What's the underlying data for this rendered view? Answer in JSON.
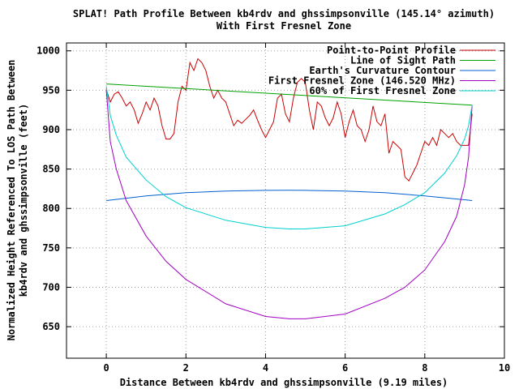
{
  "chart_data": {
    "type": "line",
    "title": "SPLAT! Path Profile Between kb4rdv and ghssimpsonville (145.14° azimuth)",
    "subtitle": "With First Fresnel Zone",
    "xlabel": "Distance Between kb4rdv and ghssimpsonville (9.19 miles)",
    "ylabel_line1": "Normalized Height Referenced To LOS Path Between",
    "ylabel_line2": "kb4rdv and ghssimpsonville (feet)",
    "xlim": [
      -1,
      10
    ],
    "ylim": [
      610,
      1010
    ],
    "xticks": [
      0,
      2,
      4,
      6,
      8,
      10
    ],
    "yticks": [
      650,
      700,
      750,
      800,
      850,
      900,
      950,
      1000
    ],
    "grid": true,
    "legend_position": "top-right",
    "series": [
      {
        "name": "Point-to-Point Profile",
        "color": "#cc0000",
        "x": [
          0,
          0.1,
          0.2,
          0.3,
          0.4,
          0.5,
          0.6,
          0.7,
          0.8,
          0.9,
          1.0,
          1.1,
          1.2,
          1.3,
          1.4,
          1.5,
          1.6,
          1.7,
          1.8,
          1.9,
          2.0,
          2.1,
          2.2,
          2.3,
          2.4,
          2.5,
          2.6,
          2.7,
          2.8,
          2.9,
          3.0,
          3.1,
          3.2,
          3.3,
          3.4,
          3.5,
          3.6,
          3.7,
          3.8,
          3.9,
          4.0,
          4.1,
          4.2,
          4.3,
          4.4,
          4.5,
          4.6,
          4.7,
          4.8,
          4.9,
          5.0,
          5.1,
          5.2,
          5.3,
          5.4,
          5.5,
          5.6,
          5.7,
          5.8,
          5.9,
          6.0,
          6.1,
          6.2,
          6.3,
          6.4,
          6.5,
          6.6,
          6.7,
          6.8,
          6.9,
          7.0,
          7.1,
          7.2,
          7.3,
          7.4,
          7.5,
          7.6,
          7.7,
          7.8,
          7.9,
          8.0,
          8.1,
          8.2,
          8.3,
          8.4,
          8.5,
          8.6,
          8.7,
          8.8,
          8.9,
          9.0,
          9.1,
          9.19
        ],
        "values": [
          951,
          935,
          945,
          948,
          940,
          930,
          935,
          925,
          908,
          920,
          935,
          925,
          940,
          930,
          905,
          888,
          888,
          895,
          935,
          955,
          950,
          985,
          975,
          990,
          985,
          975,
          955,
          940,
          950,
          940,
          935,
          920,
          905,
          912,
          908,
          913,
          918,
          925,
          912,
          900,
          890,
          900,
          910,
          940,
          945,
          920,
          910,
          940,
          960,
          965,
          960,
          925,
          900,
          935,
          930,
          915,
          905,
          915,
          935,
          920,
          890,
          910,
          925,
          905,
          900,
          885,
          900,
          930,
          910,
          905,
          920,
          870,
          885,
          880,
          875,
          840,
          835,
          845,
          855,
          870,
          885,
          880,
          890,
          880,
          900,
          895,
          890,
          895,
          885,
          880,
          880,
          880,
          920
        ]
      },
      {
        "name": "Line of Sight Path",
        "color": "#00a000",
        "x": [
          0,
          9.19
        ],
        "values": [
          958,
          931
        ]
      },
      {
        "name": "Earth's Curvature Contour",
        "color": "#0060d0",
        "x": [
          0,
          1,
          2,
          3,
          4,
          4.6,
          5,
          6,
          7,
          8,
          9,
          9.19
        ],
        "values": [
          810,
          816,
          820,
          822,
          823,
          823.2,
          823,
          822,
          820,
          816,
          811,
          810
        ]
      },
      {
        "name": "First Fresnel Zone (146.520 MHz)",
        "color": "#a000c0",
        "x": [
          0,
          0.1,
          0.25,
          0.5,
          1,
          1.5,
          2,
          3,
          4,
          4.6,
          5,
          6,
          7,
          7.5,
          8,
          8.5,
          8.8,
          9,
          9.1,
          9.19
        ],
        "values": [
          950,
          885,
          850,
          810,
          765,
          733,
          710,
          679,
          663,
          660,
          660,
          666,
          686,
          700,
          722,
          758,
          790,
          830,
          865,
          931
        ]
      },
      {
        "name": "60% of First Fresnel Zone",
        "color": "#00d0d0",
        "x": [
          0,
          0.1,
          0.25,
          0.5,
          1,
          1.5,
          2,
          3,
          4,
          4.6,
          5,
          6,
          7,
          7.5,
          8,
          8.5,
          8.8,
          9,
          9.1,
          9.19
        ],
        "values": [
          955,
          918,
          893,
          865,
          836,
          815,
          801,
          785,
          776,
          774,
          774,
          778,
          793,
          805,
          820,
          845,
          867,
          888,
          905,
          931
        ]
      }
    ]
  }
}
